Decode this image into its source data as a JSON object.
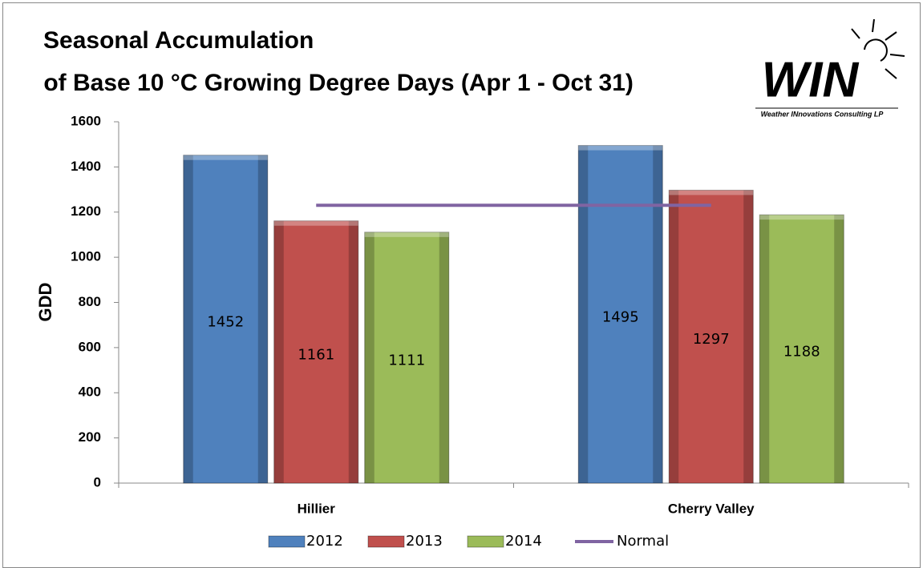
{
  "chart_data": {
    "type": "bar",
    "title": [
      "Seasonal Accumulation",
      " of Base 10 °C Growing Degree Days (Apr 1 - Oct 31)"
    ],
    "y_label": "GDD",
    "categories": [
      "Hillier",
      "Cherry Valley"
    ],
    "series": [
      {
        "name": "2012",
        "color": "#4f81bd",
        "values": [
          1452,
          1495
        ]
      },
      {
        "name": "2013",
        "color": "#c0504d",
        "values": [
          1161,
          1297
        ]
      },
      {
        "name": "2014",
        "color": "#9bbb59",
        "values": [
          1111,
          1188
        ]
      },
      {
        "name": "Normal",
        "color": "#8064a2",
        "type": "line",
        "values": [
          1230,
          1230
        ]
      }
    ],
    "ylim": [
      0,
      1600
    ],
    "yticks": [
      0,
      200,
      400,
      600,
      800,
      1000,
      1200,
      1400,
      1600
    ],
    "grid": false,
    "legend": "bottom"
  },
  "logo": {
    "text": "WIN",
    "tagline": "Weather INnovations Consulting LP"
  }
}
